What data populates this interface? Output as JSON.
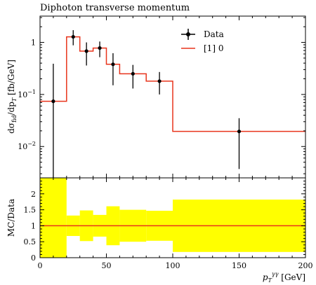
{
  "chart_data": {
    "title": "Diphoton transverse momentum",
    "type": "line",
    "main": {
      "ylabel": "dσ_fid/dp_T [fb/GeV]",
      "yscale": "log",
      "ylim": [
        0.0025,
        3.2
      ],
      "xlim": [
        0,
        200
      ],
      "yticks": [
        {
          "value": 1,
          "label": "1"
        },
        {
          "value": 0.1,
          "label": "10^-1"
        },
        {
          "value": 0.01,
          "label": "10^-2"
        }
      ],
      "data": {
        "name": "Data",
        "points": [
          {
            "x": 10,
            "y": 0.074,
            "ylo": 0.0025,
            "yhi": 0.39
          },
          {
            "x": 25,
            "y": 1.28,
            "ylo": 0.88,
            "yhi": 1.72
          },
          {
            "x": 35,
            "y": 0.68,
            "ylo": 0.36,
            "yhi": 1.0
          },
          {
            "x": 45,
            "y": 0.78,
            "ylo": 0.52,
            "yhi": 1.04
          },
          {
            "x": 55,
            "y": 0.38,
            "ylo": 0.15,
            "yhi": 0.62
          },
          {
            "x": 70,
            "y": 0.25,
            "ylo": 0.13,
            "yhi": 0.37
          },
          {
            "x": 90,
            "y": 0.18,
            "ylo": 0.1,
            "yhi": 0.27
          },
          {
            "x": 150,
            "y": 0.0195,
            "ylo": 0.0037,
            "yhi": 0.035
          }
        ]
      },
      "mc": {
        "name": "[1] 0",
        "color": "#e8341c",
        "bins": [
          {
            "lo": 0,
            "hi": 20,
            "y": 0.074
          },
          {
            "lo": 20,
            "hi": 30,
            "y": 1.28
          },
          {
            "lo": 30,
            "hi": 40,
            "y": 0.68
          },
          {
            "lo": 40,
            "hi": 50,
            "y": 0.78
          },
          {
            "lo": 50,
            "hi": 60,
            "y": 0.38
          },
          {
            "lo": 60,
            "hi": 80,
            "y": 0.25
          },
          {
            "lo": 80,
            "hi": 100,
            "y": 0.18
          },
          {
            "lo": 100,
            "hi": 200,
            "y": 0.0195
          }
        ]
      }
    },
    "ratio": {
      "ylabel": "MC/Data",
      "xlabel": "p_T^γγ [GeV]",
      "ylim": [
        0,
        2.5
      ],
      "yticks": [
        0,
        0.5,
        1,
        1.5,
        2
      ],
      "xticks": [
        0,
        50,
        100,
        150,
        200
      ],
      "band_color": "#ffff00",
      "line_color": "#e8341c",
      "band": [
        {
          "lo": 0,
          "hi": 20,
          "min": 0.0,
          "max": 2.5
        },
        {
          "lo": 20,
          "hi": 30,
          "min": 0.68,
          "max": 1.32
        },
        {
          "lo": 30,
          "hi": 40,
          "min": 0.52,
          "max": 1.48
        },
        {
          "lo": 40,
          "hi": 50,
          "min": 0.66,
          "max": 1.34
        },
        {
          "lo": 50,
          "hi": 60,
          "min": 0.39,
          "max": 1.61
        },
        {
          "lo": 60,
          "hi": 80,
          "min": 0.5,
          "max": 1.5
        },
        {
          "lo": 80,
          "hi": 100,
          "min": 0.53,
          "max": 1.47
        },
        {
          "lo": 100,
          "hi": 200,
          "min": 0.18,
          "max": 1.82
        }
      ],
      "line_value": 1
    }
  }
}
